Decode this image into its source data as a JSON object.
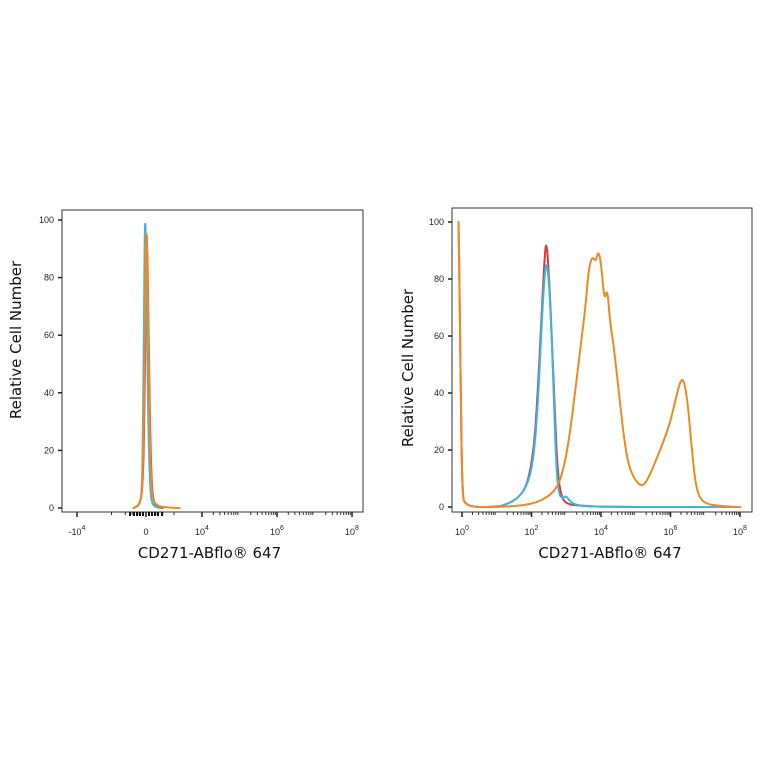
{
  "colors": {
    "red": "#e0393a",
    "cyan": "#35b8de",
    "orange": "#ef8a22",
    "frame": "#333333"
  },
  "chart_data": [
    {
      "type": "line",
      "panel": "left",
      "x_scale": "biexponential",
      "xlabel": "CD271-ABflo® 647",
      "ylabel": "Relative Cell Number",
      "ylim": [
        0,
        100
      ],
      "yticks": [
        "0",
        "20",
        "40",
        "60",
        "80",
        "100"
      ],
      "xticks": [
        {
          "base": "-10",
          "exp": "4",
          "value": -10000
        },
        {
          "base": "0",
          "exp": "",
          "value": 0
        },
        {
          "base": "10",
          "exp": "4",
          "value": 10000
        },
        {
          "base": "10",
          "exp": "6",
          "value": 1000000
        },
        {
          "base": "10",
          "exp": "8",
          "value": 100000000
        }
      ],
      "grid": false,
      "legend": "none",
      "series": [
        {
          "color_key": "red",
          "points": [
            [
              -0.22,
              0
            ],
            [
              -0.12,
              1
            ],
            [
              -0.06,
              6
            ],
            [
              -0.03,
              30
            ],
            [
              -0.01,
              65
            ],
            [
              0.0,
              88
            ],
            [
              0.01,
              95
            ],
            [
              0.02,
              93
            ],
            [
              0.04,
              70
            ],
            [
              0.07,
              30
            ],
            [
              0.1,
              8
            ],
            [
              0.14,
              2
            ],
            [
              0.2,
              0.5
            ],
            [
              0.3,
              0
            ]
          ]
        },
        {
          "color_key": "cyan",
          "points": [
            [
              -0.22,
              0
            ],
            [
              -0.12,
              1
            ],
            [
              -0.08,
              4
            ],
            [
              -0.06,
              18
            ],
            [
              -0.04,
              55
            ],
            [
              -0.025,
              92
            ],
            [
              -0.015,
              100
            ],
            [
              -0.005,
              96
            ],
            [
              0.01,
              75
            ],
            [
              0.04,
              30
            ],
            [
              0.07,
              8
            ],
            [
              0.1,
              2
            ],
            [
              0.15,
              0.5
            ],
            [
              0.25,
              0
            ]
          ]
        },
        {
          "color_key": "orange",
          "points": [
            [
              -0.22,
              0
            ],
            [
              -0.12,
              1
            ],
            [
              -0.07,
              5
            ],
            [
              -0.04,
              28
            ],
            [
              -0.02,
              62
            ],
            [
              -0.005,
              90
            ],
            [
              0.005,
              96
            ],
            [
              0.015,
              94
            ],
            [
              0.035,
              72
            ],
            [
              0.06,
              32
            ],
            [
              0.09,
              9
            ],
            [
              0.12,
              3
            ],
            [
              0.18,
              1
            ],
            [
              0.3,
              0.3
            ],
            [
              0.6,
              0
            ]
          ]
        }
      ]
    },
    {
      "type": "line",
      "panel": "right",
      "x_scale": "log",
      "xlabel": "CD271-ABflo® 647",
      "ylabel": "Relative Cell Number",
      "ylim": [
        0,
        100
      ],
      "yticks": [
        "0",
        "20",
        "40",
        "60",
        "80",
        "100"
      ],
      "xticks": [
        {
          "base": "10",
          "exp": "0",
          "value": 1
        },
        {
          "base": "10",
          "exp": "2",
          "value": 100
        },
        {
          "base": "10",
          "exp": "4",
          "value": 10000
        },
        {
          "base": "10",
          "exp": "6",
          "value": 1000000
        },
        {
          "base": "10",
          "exp": "8",
          "value": 100000000
        }
      ],
      "grid": false,
      "legend": "none",
      "series": [
        {
          "color_key": "red",
          "points": [
            [
              -0.1,
              100
            ],
            [
              -0.05,
              60
            ],
            [
              0,
              5
            ],
            [
              0.1,
              0
            ],
            [
              1.0,
              0
            ],
            [
              1.3,
              1
            ],
            [
              1.6,
              3
            ],
            [
              1.85,
              7
            ],
            [
              2.0,
              15
            ],
            [
              2.1,
              25
            ],
            [
              2.2,
              45
            ],
            [
              2.3,
              70
            ],
            [
              2.38,
              88
            ],
            [
              2.42,
              93
            ],
            [
              2.47,
              88
            ],
            [
              2.55,
              70
            ],
            [
              2.65,
              40
            ],
            [
              2.75,
              12
            ],
            [
              2.85,
              4
            ],
            [
              3.0,
              1
            ],
            [
              3.4,
              0.5
            ],
            [
              4.0,
              0
            ],
            [
              8.0,
              0
            ]
          ]
        },
        {
          "color_key": "cyan",
          "points": [
            [
              1.0,
              0
            ],
            [
              1.3,
              1
            ],
            [
              1.6,
              3
            ],
            [
              1.85,
              7
            ],
            [
              2.0,
              13
            ],
            [
              2.1,
              22
            ],
            [
              2.2,
              40
            ],
            [
              2.3,
              66
            ],
            [
              2.38,
              82
            ],
            [
              2.43,
              86
            ],
            [
              2.5,
              80
            ],
            [
              2.58,
              60
            ],
            [
              2.65,
              35
            ],
            [
              2.72,
              12
            ],
            [
              2.8,
              4
            ],
            [
              2.9,
              3
            ],
            [
              3.0,
              4
            ],
            [
              3.1,
              2
            ],
            [
              3.3,
              0.5
            ],
            [
              4.0,
              0
            ],
            [
              8.0,
              0
            ]
          ]
        },
        {
          "color_key": "orange",
          "points": [
            [
              -0.1,
              100
            ],
            [
              -0.05,
              60
            ],
            [
              0,
              5
            ],
            [
              0.1,
              0
            ],
            [
              1.0,
              0
            ],
            [
              1.5,
              0.3
            ],
            [
              2.0,
              1
            ],
            [
              2.4,
              3
            ],
            [
              2.7,
              6
            ],
            [
              2.9,
              12
            ],
            [
              3.1,
              25
            ],
            [
              3.3,
              45
            ],
            [
              3.45,
              60
            ],
            [
              3.55,
              70
            ],
            [
              3.65,
              84
            ],
            [
              3.75,
              88
            ],
            [
              3.85,
              86
            ],
            [
              3.92,
              90
            ],
            [
              4.0,
              86
            ],
            [
              4.1,
              72
            ],
            [
              4.18,
              77
            ],
            [
              4.25,
              66
            ],
            [
              4.35,
              58
            ],
            [
              4.5,
              42
            ],
            [
              4.65,
              25
            ],
            [
              4.8,
              14
            ],
            [
              5.0,
              9
            ],
            [
              5.2,
              7
            ],
            [
              5.4,
              11
            ],
            [
              5.6,
              17
            ],
            [
              5.8,
              23
            ],
            [
              6.0,
              30
            ],
            [
              6.15,
              38
            ],
            [
              6.3,
              45
            ],
            [
              6.4,
              44
            ],
            [
              6.5,
              36
            ],
            [
              6.6,
              22
            ],
            [
              6.7,
              10
            ],
            [
              6.8,
              4
            ],
            [
              7.0,
              1
            ],
            [
              7.5,
              0.3
            ],
            [
              8.0,
              0
            ]
          ]
        }
      ]
    }
  ]
}
